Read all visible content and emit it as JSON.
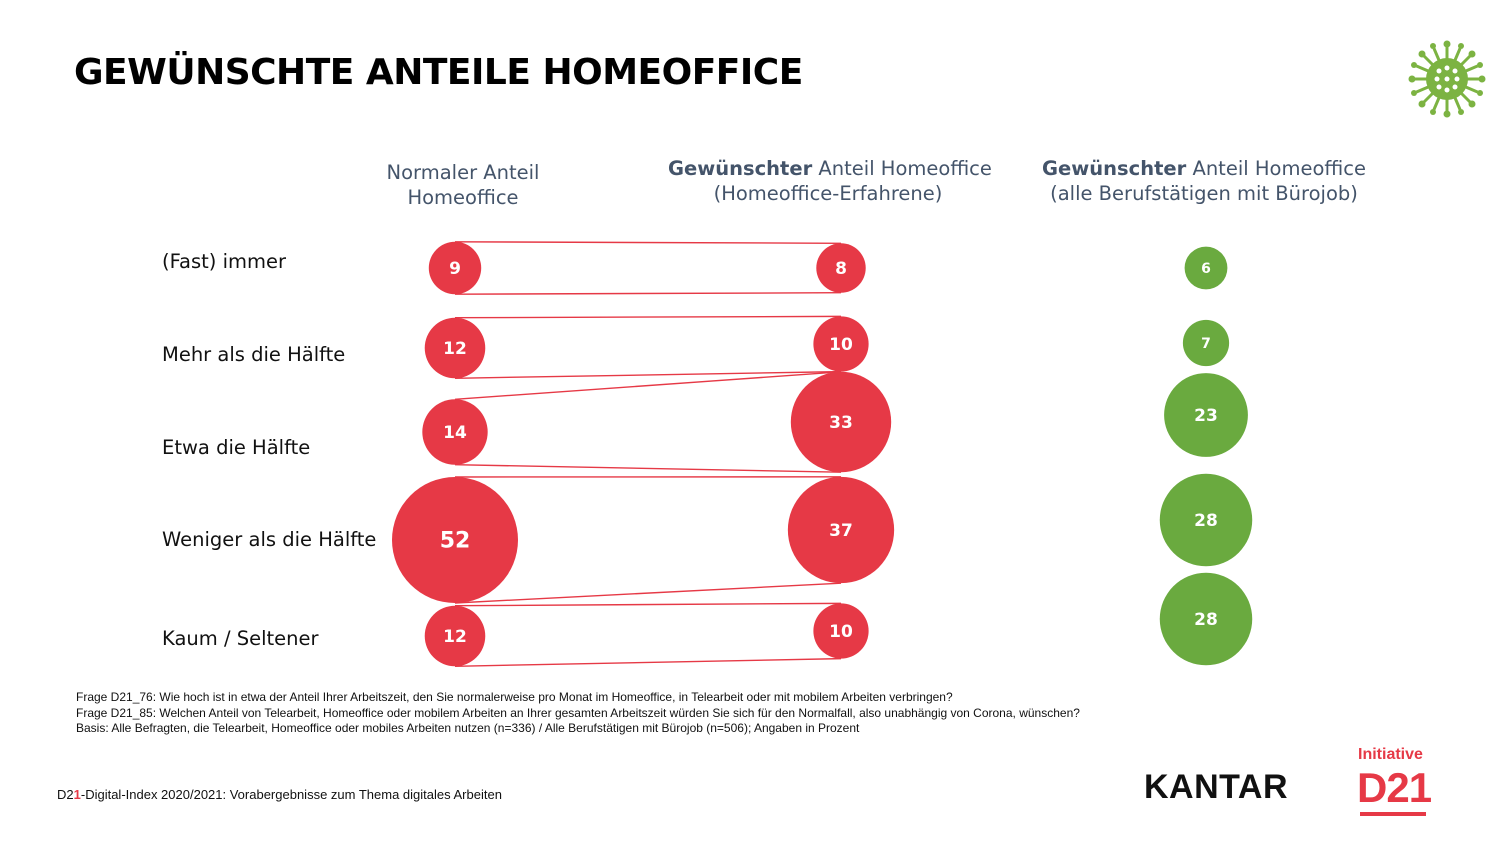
{
  "title": "GEWÜNSCHTE ANTEILE HOMEOFFICE",
  "columns": [
    {
      "line1": "Normaler Anteil",
      "line2": "Homeoffice"
    },
    {
      "bold": "Gewünschter",
      "rest": " Anteil Homeoffice",
      "line2": "(Homeoffice-Erfahrene)"
    },
    {
      "bold": "Gewünschter",
      "rest": " Anteil Homeoffice",
      "line2": "(alle Berufstätigen mit Bürojob)"
    }
  ],
  "chart_data": {
    "type": "bubble",
    "categories": [
      "(Fast) immer",
      "Mehr als die Hälfte",
      "Etwa die Hälfte",
      "Weniger als die Hälfte",
      "Kaum / Seltener"
    ],
    "series": [
      {
        "values": [
          9,
          12,
          14,
          52,
          12
        ],
        "color": "#e63946"
      },
      {
        "values": [
          8,
          10,
          33,
          37,
          10
        ],
        "color": "#e63946"
      },
      {
        "values": [
          6,
          7,
          23,
          28,
          28
        ],
        "color": "#6aaa3f"
      }
    ],
    "connector_color": "#e63946",
    "unit": "Prozent"
  },
  "footnotes": [
    "Frage D21_76: Wie hoch ist in etwa der Anteil Ihrer Arbeitszeit, den Sie normalerweise pro Monat im Homeoffice, in Telearbeit oder mit mobilem Arbeiten verbringen?",
    "Frage D21_85: Welchen Anteil von Telearbeit, Homeoffice oder mobilem Arbeiten an Ihrer gesamten Arbeitszeit würden Sie sich für den Normalfall, also unabhängig von Corona, wünschen?",
    "Basis: Alle Befragten, die Telearbeit, Homeoffice oder mobiles Arbeiten nutzen (n=336) / Alle Berufstätigen mit Bürojob (n=506); Angaben in Prozent"
  ],
  "bottom_note": {
    "prefix": "D2",
    "accent": "1",
    "rest": "-Digital-Index 2020/2021: Vorabergebnisse zum Thema digitales Arbeiten"
  },
  "logos": {
    "kantar": "KANTAR",
    "initiative": "Initiative",
    "d21": "D21"
  }
}
